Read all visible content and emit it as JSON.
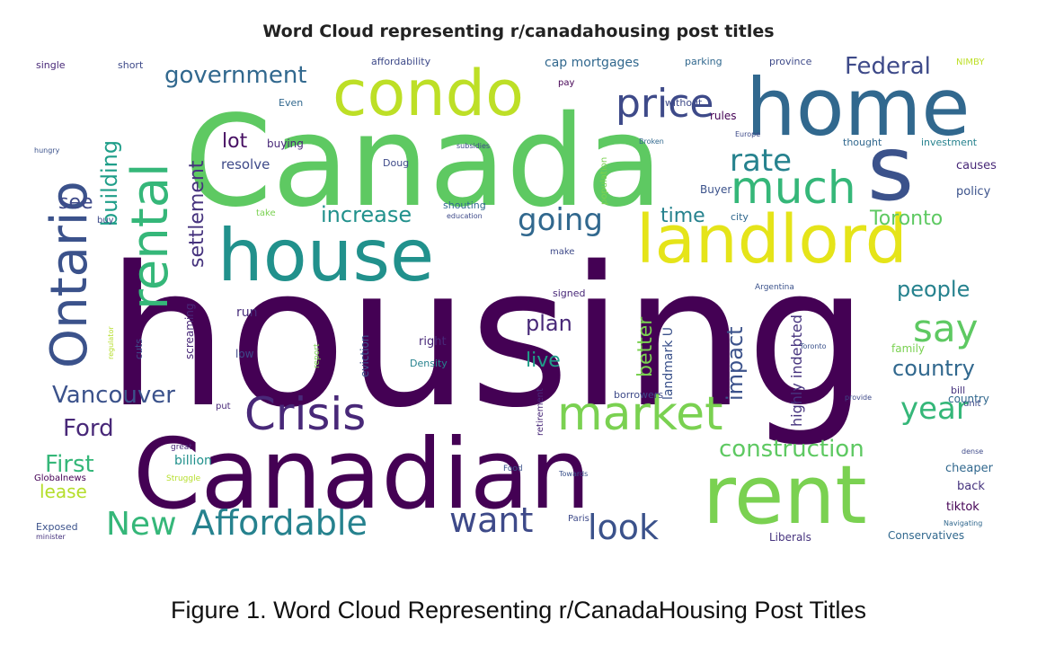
{
  "figure": {
    "title": "Word Cloud representing r/canadahousing post titles",
    "caption": "Figure 1. Word Cloud Representing r/CanadaHousing Post Titles"
  },
  "chart_data": {
    "type": "wordcloud",
    "title": "Word Cloud representing r/canadahousing post titles",
    "colormap": "viridis",
    "words": [
      {
        "text": "housing",
        "weight": 100,
        "color": "#440154"
      },
      {
        "text": "Canada",
        "weight": 62,
        "color": "#5ec962"
      },
      {
        "text": "Canadian",
        "weight": 50,
        "color": "#440154"
      },
      {
        "text": "home",
        "weight": 38,
        "color": "#31688e"
      },
      {
        "text": "house",
        "weight": 35,
        "color": "#21918c"
      },
      {
        "text": "rent",
        "weight": 36,
        "color": "#7ad151"
      },
      {
        "text": "landlord",
        "weight": 30,
        "color": "#e5e419"
      },
      {
        "text": "condo",
        "weight": 28,
        "color": "#bddf26"
      },
      {
        "text": "s",
        "weight": 30,
        "color": "#3b528b"
      },
      {
        "text": "Ontario",
        "weight": 26,
        "color": "#3b528b"
      },
      {
        "text": "rental",
        "weight": 24,
        "color": "#35b779"
      },
      {
        "text": "market",
        "weight": 20,
        "color": "#7ad151"
      },
      {
        "text": "Crisis",
        "weight": 19,
        "color": "#482878"
      },
      {
        "text": "much",
        "weight": 19,
        "color": "#35b779"
      },
      {
        "text": "price",
        "weight": 17,
        "color": "#3e4a89"
      },
      {
        "text": "Affordable",
        "weight": 15,
        "color": "#26828e"
      },
      {
        "text": "want",
        "weight": 15,
        "color": "#3e4a89"
      },
      {
        "text": "New",
        "weight": 14,
        "color": "#35b779"
      },
      {
        "text": "say",
        "weight": 15,
        "color": "#5ec962"
      },
      {
        "text": "look",
        "weight": 14,
        "color": "#3b528b"
      },
      {
        "text": "year",
        "weight": 12,
        "color": "#35b779"
      },
      {
        "text": "going",
        "weight": 12,
        "color": "#31688e"
      },
      {
        "text": "rate",
        "weight": 12,
        "color": "#26828e"
      },
      {
        "text": "building",
        "weight": 10,
        "color": "#1f9e89"
      },
      {
        "text": "settlement",
        "weight": 9,
        "color": "#46337e"
      },
      {
        "text": "Vancouver",
        "weight": 10,
        "color": "#3b528b"
      },
      {
        "text": "construction",
        "weight": 10,
        "color": "#5ec962"
      },
      {
        "text": "government",
        "weight": 10,
        "color": "#31688e"
      },
      {
        "text": "Federal",
        "weight": 10,
        "color": "#3e4a89"
      },
      {
        "text": "Ford",
        "weight": 10,
        "color": "#482878"
      },
      {
        "text": "First",
        "weight": 9,
        "color": "#35b779"
      },
      {
        "text": "country",
        "weight": 9,
        "color": "#31688e"
      },
      {
        "text": "people",
        "weight": 9,
        "color": "#26828e"
      },
      {
        "text": "increase",
        "weight": 9,
        "color": "#21918c"
      },
      {
        "text": "Toronto",
        "weight": 9,
        "color": "#5ec962"
      },
      {
        "text": "impact",
        "weight": 9,
        "color": "#3b528b"
      },
      {
        "text": "better",
        "weight": 8,
        "color": "#7ad151"
      },
      {
        "text": "plan",
        "weight": 9,
        "color": "#482878"
      },
      {
        "text": "live",
        "weight": 8,
        "color": "#1f9e89"
      },
      {
        "text": "time",
        "weight": 8,
        "color": "#26828e"
      },
      {
        "text": "lot",
        "weight": 8,
        "color": "#471063"
      },
      {
        "text": "see",
        "weight": 8,
        "color": "#3e4a89"
      },
      {
        "text": "lease",
        "weight": 8,
        "color": "#b5de2b"
      },
      {
        "text": "highly indebted",
        "weight": 6,
        "color": "#46337e"
      },
      {
        "text": "landmark U",
        "weight": 5,
        "color": "#3b528b"
      },
      {
        "text": "cap mortgages",
        "weight": 5,
        "color": "#31688e"
      },
      {
        "text": "affordability",
        "weight": 4,
        "color": "#3e4a89"
      },
      {
        "text": "policy",
        "weight": 5,
        "color": "#3b528b"
      },
      {
        "text": "causes",
        "weight": 5,
        "color": "#482878"
      },
      {
        "text": "cheaper",
        "weight": 5,
        "color": "#31688e"
      },
      {
        "text": "back",
        "weight": 5,
        "color": "#46337e"
      },
      {
        "text": "billion",
        "weight": 5,
        "color": "#21918c"
      },
      {
        "text": "Conservatives",
        "weight": 4,
        "color": "#31688e"
      },
      {
        "text": "Liberals",
        "weight": 4,
        "color": "#46337e"
      },
      {
        "text": "resolve",
        "weight": 5,
        "color": "#3e4a89"
      },
      {
        "text": "buying",
        "weight": 4,
        "color": "#482878"
      },
      {
        "text": "Buyer",
        "weight": 4,
        "color": "#3b528b"
      },
      {
        "text": "city",
        "weight": 4,
        "color": "#31688e"
      },
      {
        "text": "rules",
        "weight": 4,
        "color": "#440154"
      },
      {
        "text": "investment",
        "weight": 4,
        "color": "#26828e"
      },
      {
        "text": "thought",
        "weight": 4,
        "color": "#31688e"
      },
      {
        "text": "Doug",
        "weight": 4,
        "color": "#3e4a89"
      },
      {
        "text": "run",
        "weight": 4,
        "color": "#472d7b"
      },
      {
        "text": "low",
        "weight": 4,
        "color": "#3e4a89"
      },
      {
        "text": "right",
        "weight": 4,
        "color": "#482878"
      },
      {
        "text": "family",
        "weight": 4,
        "color": "#7ad151"
      },
      {
        "text": "country",
        "weight": 4,
        "color": "#31688e"
      },
      {
        "text": "tiktok",
        "weight": 4,
        "color": "#440154"
      },
      {
        "text": "unit",
        "weight": 3,
        "color": "#3e4a89"
      },
      {
        "text": "bill",
        "weight": 3,
        "color": "#46337e"
      },
      {
        "text": "eviction",
        "weight": 3,
        "color": "#3b528b"
      },
      {
        "text": "Density",
        "weight": 3,
        "color": "#26828e"
      },
      {
        "text": "retirement",
        "weight": 3,
        "color": "#482878"
      },
      {
        "text": "borrowers",
        "weight": 3,
        "color": "#3e4a89"
      },
      {
        "text": "signed",
        "weight": 3,
        "color": "#482878"
      },
      {
        "text": "screaming",
        "weight": 3,
        "color": "#482878"
      },
      {
        "text": "Exposed",
        "weight": 3,
        "color": "#3b528b"
      },
      {
        "text": "parking",
        "weight": 3,
        "color": "#31688e"
      },
      {
        "text": "province",
        "weight": 3,
        "color": "#3e4a89"
      },
      {
        "text": "NIMBY",
        "weight": 3,
        "color": "#bddf26"
      },
      {
        "text": "single",
        "weight": 3,
        "color": "#482878"
      },
      {
        "text": "short",
        "weight": 3,
        "color": "#3e4a89"
      },
      {
        "text": "pay",
        "weight": 3,
        "color": "#440154"
      },
      {
        "text": "Even",
        "weight": 3,
        "color": "#31688e"
      },
      {
        "text": "take",
        "weight": 3,
        "color": "#7ad151"
      },
      {
        "text": "without",
        "weight": 3,
        "color": "#3e4a89"
      },
      {
        "text": "subsidies",
        "weight": 2,
        "color": "#3e4a89"
      },
      {
        "text": "shouting",
        "weight": 3,
        "color": "#31688e"
      },
      {
        "text": "population",
        "weight": 3,
        "color": "#7ad151"
      },
      {
        "text": "Argentina",
        "weight": 2,
        "color": "#3b528b"
      },
      {
        "text": "education",
        "weight": 2,
        "color": "#3e4a89"
      },
      {
        "text": "Globalnews",
        "weight": 3,
        "color": "#440154"
      },
      {
        "text": "great",
        "weight": 3,
        "color": "#482878"
      },
      {
        "text": "Toronto",
        "weight": 2,
        "color": "#3b528b"
      },
      {
        "text": "Paris",
        "weight": 3,
        "color": "#3e4a89"
      },
      {
        "text": "minister",
        "weight": 2,
        "color": "#46337e"
      },
      {
        "text": "Struggle",
        "weight": 2,
        "color": "#b5de2b"
      },
      {
        "text": "buy",
        "weight": 3,
        "color": "#3e4a89"
      },
      {
        "text": "put",
        "weight": 3,
        "color": "#482878"
      },
      {
        "text": "cuts",
        "weight": 3,
        "color": "#3e4a89"
      },
      {
        "text": "report",
        "weight": 3,
        "color": "#7ad151"
      },
      {
        "text": "Food",
        "weight": 2,
        "color": "#3b528b"
      },
      {
        "text": "make",
        "weight": 3,
        "color": "#3e4a89"
      },
      {
        "text": "Towards",
        "weight": 2,
        "color": "#3b528b"
      },
      {
        "text": "provide",
        "weight": 2,
        "color": "#3e4a89"
      },
      {
        "text": "Broken",
        "weight": 2,
        "color": "#31688e"
      },
      {
        "text": "Europe",
        "weight": 2,
        "color": "#3e4a89"
      },
      {
        "text": "hungry",
        "weight": 2,
        "color": "#3b528b"
      },
      {
        "text": "regulator",
        "weight": 2,
        "color": "#b5de2b"
      },
      {
        "text": "dense",
        "weight": 2,
        "color": "#3e4a89"
      },
      {
        "text": "Navigating",
        "weight": 2,
        "color": "#31688e"
      }
    ]
  }
}
